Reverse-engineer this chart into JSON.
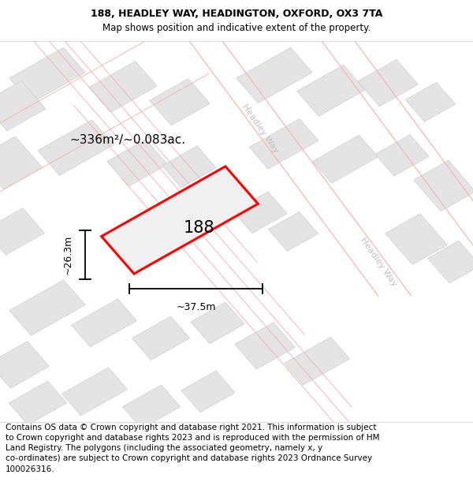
{
  "title_line1": "188, HEADLEY WAY, HEADINGTON, OXFORD, OX3 7TA",
  "title_line2": "Map shows position and indicative extent of the property.",
  "footer_text": "Contains OS data © Crown copyright and database right 2021. This information is subject to Crown copyright and database rights 2023 and is reproduced with the permission of HM Land Registry. The polygons (including the associated geometry, namely x, y co-ordinates) are subject to Crown copyright and database rights 2023 Ordnance Survey 100026316.",
  "background_color": "#ffffff",
  "map_bg_color": "#f9f9f9",
  "building_color": "#e4e4e4",
  "building_edge": "#d0d0d0",
  "road_pink": "#f5b8b0",
  "street_label_color": "#c0c0c0",
  "property_fill": "#f0f0f0",
  "property_edge": "#ff0000",
  "property_label": "188",
  "area_text": "~336m²/~0.083ac.",
  "dim_width": "~37.5m",
  "dim_height": "~26.3m",
  "title_fontsize": 9,
  "subtitle_fontsize": 8.5,
  "footer_fontsize": 7.5
}
